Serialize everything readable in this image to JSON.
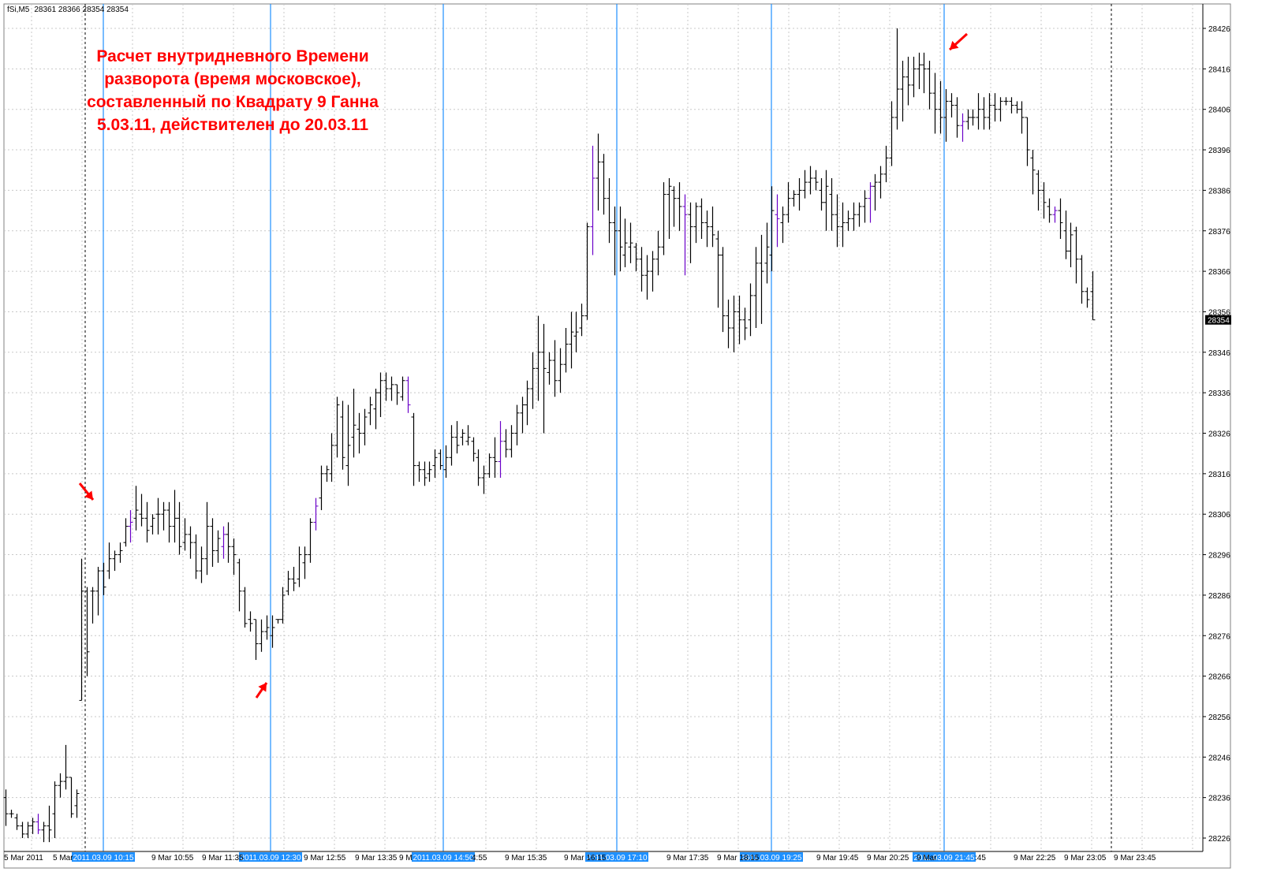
{
  "header": {
    "symbol": "fSi,M5",
    "ohlc": "28361 28366 28354 28354"
  },
  "annotation": {
    "lines": [
      "Расчет внутридневного Времени",
      "разворота (время московское),",
      "составленный по Квадрату 9 Ганна",
      "5.03.11, действителен до 20.03.11"
    ],
    "color": "#ff0000"
  },
  "colors": {
    "background": "#ffffff",
    "grid": "#c8c8c8",
    "bars": "#000000",
    "bars_alt": "#6a00c8",
    "time_lines": "#1e90ff",
    "arrows": "#ff0000",
    "current_price_bg": "#000000"
  },
  "chart_data": {
    "type": "ohlc",
    "timeframe": "M5",
    "y_ticks": [
      28426,
      28416,
      28406,
      28396,
      28386,
      28376,
      28366,
      28356,
      28346,
      28336,
      28326,
      28316,
      28306,
      28296,
      28286,
      28276,
      28266,
      28256,
      28246,
      28236,
      28226
    ],
    "ylim": [
      28222,
      28429
    ],
    "current_price": "28354",
    "x_labels": [
      "5 Mar 2011",
      "5 Mar",
      "9 Mar 10:55",
      "9 Mar 11:35",
      "9 Mar 12:55",
      "9 Mar 13:35",
      "9 M",
      "4:55",
      "9 Mar 15:35",
      "9 Mar 16:15",
      "9 Mar 17:35",
      "9 Mar 18:15",
      "9 Mar 19:45",
      "9 Mar 20:25",
      "9 Mar",
      ":45",
      "9 Mar 22:25",
      "9 Mar 23:05",
      "9 Mar 23:45"
    ],
    "reversal_times": [
      "2011.03.09 10:15",
      "2011.03.09 12:30",
      "2011.03.09 14:50",
      "2011.03.09 17:10",
      "2011.03.09 19:25",
      "2011.03.09 21:45"
    ],
    "bars": [
      [
        28236,
        28238,
        28229,
        28232
      ],
      [
        28232,
        28233,
        28231,
        28232
      ],
      [
        28231,
        28232,
        28228,
        28229
      ],
      [
        28229,
        28230,
        28226,
        28227
      ],
      [
        28227,
        28230,
        28226,
        28229
      ],
      [
        28229,
        28231,
        28227,
        28230
      ],
      [
        28230,
        28232,
        28227,
        28228
      ],
      [
        28228,
        28230,
        28225,
        28229
      ],
      [
        28229,
        28234,
        28225,
        28228
      ],
      [
        28232,
        28240,
        28226,
        28239
      ],
      [
        28239,
        28242,
        28236,
        28240
      ],
      [
        28240,
        28249,
        28238,
        28241
      ],
      [
        28241,
        28241,
        28231,
        28232
      ],
      [
        28234,
        28238,
        28231,
        28237
      ],
      [
        28260,
        28295,
        28260,
        28287
      ],
      [
        28287,
        28288,
        28266,
        28272
      ],
      [
        28287,
        28288,
        28279,
        28287
      ],
      [
        28287,
        28293,
        28281,
        28292
      ],
      [
        28292,
        28294,
        28286,
        28288
      ],
      [
        28292,
        28299,
        28290,
        28295
      ],
      [
        28295,
        28297,
        28292,
        28296
      ],
      [
        28296,
        28299,
        28294,
        28297
      ],
      [
        28299,
        28305,
        28298,
        28303
      ],
      [
        28303,
        28307,
        28299,
        28304
      ],
      [
        28305,
        28313,
        28302,
        28307
      ],
      [
        28306,
        28311,
        28303,
        28305
      ],
      [
        28305,
        28309,
        28299,
        28302
      ],
      [
        28303,
        28306,
        28301,
        28305
      ],
      [
        28306,
        28310,
        28301,
        28306
      ],
      [
        28306,
        28309,
        28302,
        28307
      ],
      [
        28307,
        28309,
        28299,
        28303
      ],
      [
        28303,
        28312,
        28299,
        28305
      ],
      [
        28305,
        28309,
        28296,
        28298
      ],
      [
        28299,
        28305,
        28297,
        28301
      ],
      [
        28301,
        28303,
        28295,
        28299
      ],
      [
        28299,
        28301,
        28290,
        28292
      ],
      [
        28292,
        28298,
        28289,
        28295
      ],
      [
        28295,
        28309,
        28291,
        28303
      ],
      [
        28303,
        28305,
        28293,
        28297
      ],
      [
        28297,
        28302,
        28294,
        28300
      ],
      [
        28298,
        28303,
        28295,
        28301
      ],
      [
        28301,
        28304,
        28294,
        28298
      ],
      [
        28298,
        28300,
        28291,
        28296
      ],
      [
        28294,
        28295,
        28282,
        28287
      ],
      [
        28287,
        28288,
        28278,
        28279
      ],
      [
        28280,
        28282,
        28277,
        28279
      ],
      [
        28280,
        28280,
        28270,
        28274
      ],
      [
        28274,
        28280,
        28272,
        28277
      ],
      [
        28277,
        28281,
        28275,
        28278
      ],
      [
        28276,
        28281,
        28273,
        28278
      ],
      [
        28280,
        28280,
        28279,
        28280
      ],
      [
        28280,
        28288,
        28279,
        28286
      ],
      [
        28287,
        28292,
        28286,
        28290
      ],
      [
        28290,
        28293,
        28287,
        28289
      ],
      [
        28290,
        28298,
        28288,
        28296
      ],
      [
        28294,
        28298,
        28290,
        28296
      ],
      [
        28296,
        28305,
        28294,
        28304
      ],
      [
        28304,
        28310,
        28302,
        28308
      ],
      [
        28310,
        28318,
        28307,
        28316
      ],
      [
        28316,
        28318,
        28314,
        28317
      ],
      [
        28316,
        28326,
        28314,
        28323
      ],
      [
        28323,
        28335,
        28320,
        28333
      ],
      [
        28330,
        28334,
        28317,
        28320
      ],
      [
        28318,
        28333,
        28313,
        28323
      ],
      [
        28325,
        28337,
        28320,
        28328
      ],
      [
        28327,
        28331,
        28321,
        28326
      ],
      [
        28326,
        28332,
        28323,
        28330
      ],
      [
        28331,
        28335,
        28328,
        28333
      ],
      [
        28332,
        28337,
        28327,
        28336
      ],
      [
        28336,
        28341,
        28330,
        28339
      ],
      [
        28339,
        28341,
        28334,
        28337
      ],
      [
        28337,
        28340,
        28334,
        28338
      ],
      [
        28338,
        28338,
        28333,
        28336
      ],
      [
        28335,
        28340,
        28334,
        28339
      ],
      [
        28339,
        28340,
        28331,
        28333
      ],
      [
        28330,
        28331,
        28313,
        28318
      ],
      [
        28318,
        28319,
        28314,
        28317
      ],
      [
        28317,
        28319,
        28313,
        28315
      ],
      [
        28316,
        28319,
        28314,
        28317
      ],
      [
        28318,
        28322,
        28315,
        28320
      ],
      [
        28321,
        28322,
        28317,
        28318
      ],
      [
        28317,
        28323,
        28315,
        28320
      ],
      [
        28320,
        28328,
        28318,
        28325
      ],
      [
        28325,
        28329,
        28321,
        28323
      ],
      [
        28325,
        28327,
        28323,
        28326
      ],
      [
        28324,
        28328,
        28323,
        28325
      ],
      [
        28324,
        28325,
        28319,
        28321
      ],
      [
        28320,
        28322,
        28313,
        28315
      ],
      [
        28315,
        28318,
        28311,
        28316
      ],
      [
        28316,
        28321,
        28315,
        28320
      ],
      [
        28320,
        28325,
        28315,
        28319
      ],
      [
        28319,
        28329,
        28315,
        28324
      ],
      [
        28324,
        28327,
        28320,
        28322
      ],
      [
        28322,
        28328,
        28320,
        28326
      ],
      [
        28326,
        28333,
        28323,
        28331
      ],
      [
        28331,
        28335,
        28326,
        28333
      ],
      [
        28333,
        28339,
        28328,
        28337
      ],
      [
        28337,
        28346,
        28332,
        28342
      ],
      [
        28342,
        28355,
        28334,
        28346
      ],
      [
        28346,
        28353,
        28326,
        28342
      ],
      [
        28341,
        28346,
        28338,
        28344
      ],
      [
        28344,
        28349,
        28335,
        28339
      ],
      [
        28339,
        28347,
        28336,
        28343
      ],
      [
        28343,
        28352,
        28341,
        28348
      ],
      [
        28348,
        28356,
        28342,
        28351
      ],
      [
        28350,
        28356,
        28346,
        28351
      ],
      [
        28352,
        28358,
        28350,
        28355
      ],
      [
        28355,
        28378,
        28354,
        28377
      ],
      [
        28377,
        28397,
        28370,
        28389
      ],
      [
        28389,
        28400,
        28381,
        28393
      ],
      [
        28393,
        28395,
        28380,
        28384
      ],
      [
        28384,
        28389,
        28373,
        28378
      ],
      [
        28378,
        28382,
        28365,
        28376
      ],
      [
        28376,
        28382,
        28366,
        28372
      ],
      [
        28370,
        28379,
        28367,
        28373
      ],
      [
        28372,
        28378,
        28368,
        28373
      ],
      [
        28372,
        28373,
        28366,
        28369
      ],
      [
        28369,
        28372,
        28361,
        28365
      ],
      [
        28365,
        28370,
        28359,
        28366
      ],
      [
        28366,
        28371,
        28361,
        28369
      ],
      [
        28369,
        28376,
        28365,
        28372
      ],
      [
        28372,
        28388,
        28370,
        28385
      ],
      [
        28385,
        28389,
        28374,
        28387
      ],
      [
        28386,
        28387,
        28377,
        28384
      ],
      [
        28384,
        28388,
        28376,
        28382
      ],
      [
        28382,
        28385,
        28365,
        28380
      ],
      [
        28380,
        28383,
        28368,
        28377
      ],
      [
        28377,
        28383,
        28373,
        28382
      ],
      [
        28382,
        28384,
        28374,
        28378
      ],
      [
        28378,
        28381,
        28372,
        28377
      ],
      [
        28377,
        28382,
        28372,
        28375
      ],
      [
        28374,
        28376,
        28357,
        28370
      ],
      [
        28370,
        28372,
        28351,
        28355
      ],
      [
        28355,
        28359,
        28347,
        28352
      ],
      [
        28352,
        28360,
        28346,
        28356
      ],
      [
        28356,
        28360,
        28348,
        28354
      ],
      [
        28354,
        28357,
        28349,
        28352
      ],
      [
        28354,
        28363,
        28350,
        28360
      ],
      [
        28360,
        28372,
        28352,
        28368
      ],
      [
        28368,
        28375,
        28353,
        28366
      ],
      [
        28368,
        28378,
        28363,
        28372
      ],
      [
        28370,
        28387,
        28366,
        28381
      ],
      [
        28380,
        28385,
        28372,
        28379
      ],
      [
        28378,
        28382,
        28373,
        28380
      ],
      [
        28380,
        28388,
        28378,
        28384
      ],
      [
        28384,
        28386,
        28382,
        28385
      ],
      [
        28385,
        28389,
        28381,
        28386
      ],
      [
        28386,
        28391,
        28384,
        28388
      ],
      [
        28388,
        28392,
        28385,
        28389
      ],
      [
        28389,
        28391,
        28386,
        28388
      ],
      [
        28386,
        28389,
        28381,
        28383
      ],
      [
        28383,
        28391,
        28376,
        28387
      ],
      [
        28385,
        28389,
        28376,
        28380
      ],
      [
        28380,
        28385,
        28372,
        28377
      ],
      [
        28377,
        28383,
        28372,
        28378
      ],
      [
        28378,
        28381,
        28376,
        28379
      ],
      [
        28379,
        28383,
        28376,
        28380
      ],
      [
        28380,
        28383,
        28377,
        28382
      ],
      [
        28382,
        28386,
        28378,
        28384
      ],
      [
        28384,
        28388,
        28378,
        28387
      ],
      [
        28387,
        28390,
        28381,
        28388
      ],
      [
        28388,
        28392,
        28384,
        28390
      ],
      [
        28390,
        28397,
        28388,
        28394
      ],
      [
        28394,
        28408,
        28392,
        28404
      ],
      [
        28404,
        28426,
        28401,
        28411
      ],
      [
        28411,
        28418,
        28403,
        28414
      ],
      [
        28414,
        28419,
        28407,
        28412
      ],
      [
        28412,
        28419,
        28409,
        28416
      ],
      [
        28416,
        28420,
        28411,
        28417
      ],
      [
        28417,
        28420,
        28410,
        28416
      ],
      [
        28416,
        28418,
        28406,
        28410
      ],
      [
        28410,
        28415,
        28400,
        28406
      ],
      [
        28406,
        28413,
        28400,
        28404
      ],
      [
        28404,
        28411,
        28398,
        28408
      ],
      [
        28408,
        28410,
        28404,
        28407
      ],
      [
        28407,
        28409,
        28399,
        28402
      ],
      [
        28402,
        28405,
        28398,
        28403
      ],
      [
        28403,
        28406,
        28401,
        28404
      ],
      [
        28404,
        28406,
        28402,
        28404
      ],
      [
        28404,
        28410,
        28401,
        28406
      ],
      [
        28406,
        28409,
        28401,
        28404
      ],
      [
        28404,
        28410,
        28401,
        28407
      ],
      [
        28407,
        28410,
        28403,
        28406
      ],
      [
        28406,
        28409,
        28403,
        28408
      ],
      [
        28408,
        28409,
        28407,
        28408
      ],
      [
        28408,
        28409,
        28405,
        28407
      ],
      [
        28407,
        28408,
        28405,
        28406
      ],
      [
        28406,
        28408,
        28400,
        28404
      ],
      [
        28404,
        28404,
        28392,
        28396
      ],
      [
        28394,
        28396,
        28385,
        28391
      ],
      [
        28390,
        28391,
        28381,
        28386
      ],
      [
        28386,
        28388,
        28379,
        28383
      ],
      [
        28382,
        28384,
        28378,
        28380
      ],
      [
        28380,
        28382,
        28378,
        28381
      ],
      [
        28381,
        28384,
        28374,
        28378
      ],
      [
        28376,
        28381,
        28369,
        28371
      ],
      [
        28371,
        28378,
        28367,
        28375
      ],
      [
        28376,
        28377,
        28363,
        28369
      ],
      [
        28369,
        28370,
        28358,
        28361
      ],
      [
        28361,
        28362,
        28357,
        28359
      ],
      [
        28361,
        28366,
        28354,
        28354
      ]
    ]
  }
}
